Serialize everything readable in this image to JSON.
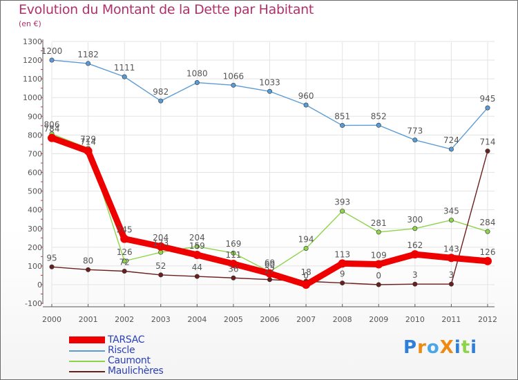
{
  "header": {
    "title": "Evolution du Montant de la Dette par Habitant",
    "subtitle": "(en €)"
  },
  "colors": {
    "title": "#b0306a",
    "axis": "#555555",
    "grid": "#e3e3e3",
    "legend_text": "#2a3fb8",
    "label_text": "#555555"
  },
  "logo": {
    "text": "ProXiti"
  },
  "chart_data": {
    "type": "line",
    "title": "Evolution du Montant de la Dette par Habitant",
    "subtitle": "(en €)",
    "x": [
      "2000",
      "2001",
      "2002",
      "2003",
      "2004",
      "2005",
      "2006",
      "2007",
      "2008",
      "2009",
      "2010",
      "2011",
      "2012"
    ],
    "ylim": [
      -100,
      1300
    ],
    "yticks": [
      -100,
      0,
      100,
      200,
      300,
      400,
      500,
      600,
      700,
      800,
      900,
      1000,
      1100,
      1200,
      1300
    ],
    "grid": true,
    "legend_position": "bottom-left",
    "series": [
      {
        "name": "TARSAC",
        "color": "#ee0000",
        "emphasis": true,
        "values": [
          784,
          714,
          245,
          204,
          159,
          111,
          60,
          0,
          113,
          109,
          162,
          143,
          126
        ],
        "labels": [
          "784",
          "714",
          "245",
          "204",
          "159",
          "111",
          "60",
          "0",
          "113",
          "109",
          "162",
          "143",
          "126"
        ]
      },
      {
        "name": "Riscle",
        "color": "#5b9bd5",
        "values": [
          1200,
          1182,
          1111,
          982,
          1080,
          1066,
          1033,
          960,
          851,
          852,
          773,
          724,
          945
        ],
        "labels": [
          "1200",
          "1182",
          "1111",
          "982",
          "1080",
          "1066",
          "1033",
          "960",
          "851",
          "852",
          "773",
          "724",
          "945"
        ]
      },
      {
        "name": "Caumont",
        "color": "#8ed44a",
        "values": [
          806,
          729,
          126,
          173,
          204,
          169,
          69,
          194,
          393,
          281,
          300,
          345,
          284
        ],
        "labels": [
          "806",
          "729",
          "126",
          "173",
          "204",
          "169",
          "69",
          "194",
          "393",
          "281",
          "300",
          "345",
          "284"
        ]
      },
      {
        "name": "Maulichères",
        "color": "#6b1e1e",
        "values": [
          95,
          80,
          72,
          52,
          44,
          36,
          27,
          18,
          9,
          0,
          3,
          3,
          714
        ],
        "labels": [
          "95",
          "80",
          "72",
          "52",
          "44",
          "36",
          "27",
          "18",
          "9",
          "0",
          "3",
          "3",
          "714"
        ]
      }
    ]
  }
}
